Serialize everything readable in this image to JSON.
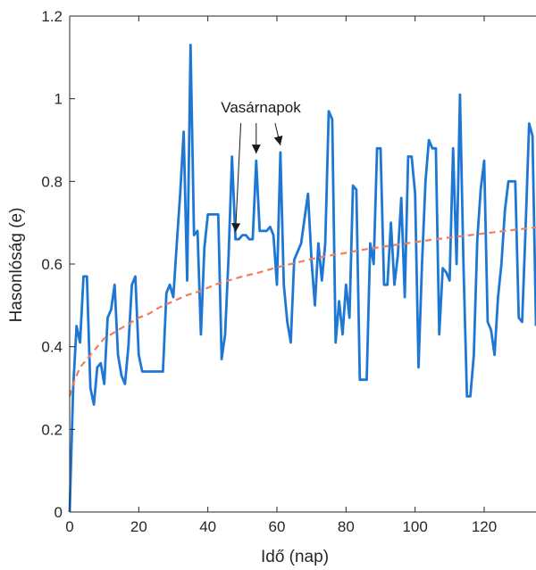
{
  "chart_data": {
    "type": "line",
    "title": "",
    "xlabel": "Idő (nap)",
    "ylabel": "Hasonlóság (e)",
    "xlim": [
      0,
      135
    ],
    "ylim": [
      0,
      1.2
    ],
    "xticks": [
      0,
      20,
      40,
      60,
      80,
      100,
      120
    ],
    "xtick_labels": [
      "0",
      "20",
      "40",
      "60",
      "80",
      "100",
      "120"
    ],
    "yticks": [
      0,
      0.2,
      0.4,
      0.6,
      0.8,
      1.0,
      1.2
    ],
    "ytick_labels": [
      "0",
      "0.2",
      "0.4",
      "0.6",
      "0.8",
      "1",
      "1.2"
    ],
    "grid": false,
    "series": [
      {
        "color": "#1f77d4",
        "style": "solid",
        "x": [
          0,
          1,
          2,
          3,
          4,
          5,
          6,
          7,
          8,
          9,
          10,
          11,
          12,
          13,
          14,
          15,
          16,
          17,
          18,
          19,
          20,
          21,
          22,
          23,
          24,
          25,
          26,
          27,
          28,
          29,
          30,
          31,
          32,
          33,
          34,
          35,
          36,
          37,
          38,
          39,
          40,
          41,
          42,
          43,
          44,
          45,
          46,
          47,
          48,
          49,
          50,
          51,
          52,
          53,
          54,
          55,
          56,
          57,
          58,
          59,
          60,
          61,
          62,
          63,
          64,
          65,
          66,
          67,
          68,
          69,
          70,
          71,
          72,
          73,
          74,
          75,
          76,
          77,
          78,
          79,
          80,
          81,
          82,
          83,
          84,
          85,
          86,
          87,
          88,
          89,
          90,
          91,
          92,
          93,
          94,
          95,
          96,
          97,
          98,
          99,
          100,
          101,
          102,
          103,
          104,
          105,
          106,
          107,
          108,
          109,
          110,
          111,
          112,
          113,
          114,
          115,
          116,
          117,
          118,
          119,
          120,
          121,
          122,
          123,
          124,
          125,
          126,
          127,
          128,
          129,
          130,
          131,
          132,
          133,
          134,
          135
        ],
        "y": [
          0.0,
          0.3,
          0.45,
          0.41,
          0.57,
          0.57,
          0.3,
          0.26,
          0.35,
          0.36,
          0.31,
          0.47,
          0.49,
          0.55,
          0.38,
          0.33,
          0.31,
          0.4,
          0.55,
          0.57,
          0.38,
          0.34,
          0.34,
          0.34,
          0.34,
          0.34,
          0.34,
          0.34,
          0.53,
          0.55,
          0.52,
          0.65,
          0.77,
          0.92,
          0.56,
          1.13,
          0.67,
          0.68,
          0.43,
          0.64,
          0.72,
          0.72,
          0.72,
          0.72,
          0.37,
          0.43,
          0.62,
          0.86,
          0.66,
          0.66,
          0.67,
          0.67,
          0.66,
          0.66,
          0.85,
          0.68,
          0.68,
          0.68,
          0.69,
          0.67,
          0.55,
          0.87,
          0.55,
          0.46,
          0.41,
          0.61,
          0.63,
          0.65,
          0.71,
          0.77,
          0.61,
          0.5,
          0.65,
          0.56,
          0.65,
          0.97,
          0.95,
          0.41,
          0.51,
          0.43,
          0.55,
          0.47,
          0.79,
          0.78,
          0.32,
          0.32,
          0.32,
          0.65,
          0.6,
          0.88,
          0.88,
          0.55,
          0.55,
          0.7,
          0.55,
          0.62,
          0.76,
          0.52,
          0.86,
          0.86,
          0.77,
          0.35,
          0.6,
          0.8,
          0.9,
          0.88,
          0.88,
          0.43,
          0.59,
          0.58,
          0.56,
          0.88,
          0.6,
          1.01,
          0.6,
          0.28,
          0.28,
          0.38,
          0.66,
          0.78,
          0.85,
          0.46,
          0.44,
          0.38,
          0.52,
          0.6,
          0.73,
          0.8,
          0.8,
          0.8,
          0.47,
          0.46,
          0.69,
          0.94,
          0.91,
          0.45
        ]
      },
      {
        "color": "#f07d5c",
        "style": "dashed",
        "x": [
          0,
          1,
          2,
          3,
          4,
          5,
          6,
          7,
          8,
          10,
          12,
          14,
          16,
          18,
          20,
          23,
          26,
          30,
          34,
          38,
          42,
          46,
          50,
          55,
          60,
          65,
          70,
          75,
          80,
          85,
          90,
          95,
          100,
          105,
          110,
          115,
          120,
          125,
          130,
          135
        ],
        "y": [
          0.28,
          0.31,
          0.33,
          0.35,
          0.36,
          0.37,
          0.38,
          0.39,
          0.4,
          0.42,
          0.43,
          0.44,
          0.45,
          0.46,
          0.47,
          0.48,
          0.495,
          0.51,
          0.525,
          0.535,
          0.55,
          0.56,
          0.57,
          0.58,
          0.592,
          0.602,
          0.612,
          0.62,
          0.627,
          0.635,
          0.641,
          0.647,
          0.653,
          0.659,
          0.664,
          0.669,
          0.674,
          0.679,
          0.684,
          0.689
        ]
      }
    ],
    "annotations": [
      {
        "text": "Vasárnapok",
        "arrow_targets_x": [
          48,
          54,
          61
        ]
      }
    ]
  }
}
